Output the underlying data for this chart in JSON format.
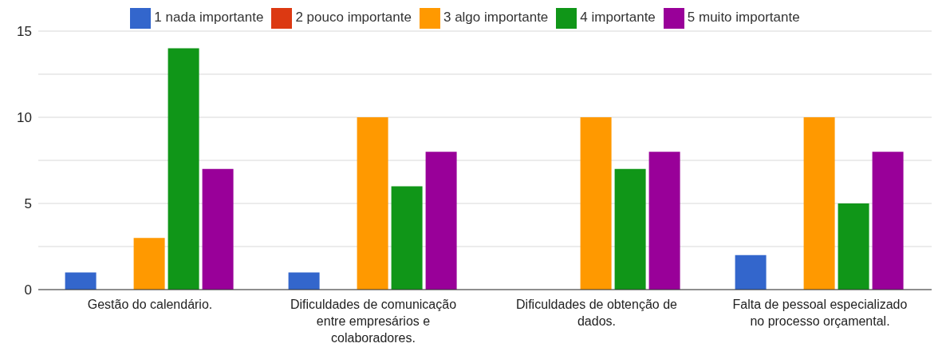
{
  "chart_data": {
    "type": "bar",
    "categories": [
      "Gestão do calendário.",
      "Dificuldades de comunicação entre empresários e colaboradores.",
      "Dificuldades de obtenção de dados.",
      "Falta de pessoal especializado no processo orçamental."
    ],
    "series": [
      {
        "name": "1 nada importante",
        "color": "#3366cc",
        "values": [
          1,
          1,
          0,
          2
        ]
      },
      {
        "name": "2 pouco importante",
        "color": "#dc3912",
        "values": [
          0,
          0,
          0,
          0
        ]
      },
      {
        "name": "3 algo importante",
        "color": "#ff9900",
        "values": [
          3,
          10,
          10,
          10
        ]
      },
      {
        "name": "4 importante",
        "color": "#109618",
        "values": [
          14,
          6,
          7,
          5
        ]
      },
      {
        "name": "5 muito importante",
        "color": "#990099",
        "values": [
          7,
          8,
          8,
          8
        ]
      }
    ],
    "ylim": [
      0,
      15
    ],
    "yticks": [
      0,
      {
        "value": 2.5,
        "label": null
      },
      5,
      {
        "value": 7.5,
        "label": null
      },
      10,
      {
        "value": 12.5,
        "label": null
      },
      15
    ],
    "grid": "y",
    "legend": "top"
  }
}
